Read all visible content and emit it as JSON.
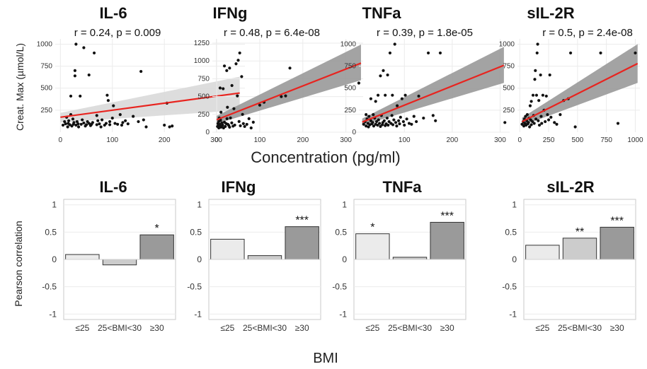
{
  "figure": {
    "top_x_label": "Concentration (pg/ml)",
    "top_y_label": "Creat. Max (µmol/L)",
    "bottom_x_label": "BMI",
    "bottom_y_label": "Pearson correlation"
  },
  "chart_data": [
    {
      "type": "scatter",
      "title": "IL-6",
      "stat": "r = 0.24, p = 0.009",
      "xlim": [
        -10,
        355
      ],
      "ylim": [
        0,
        1060
      ],
      "xticks": [
        0,
        100,
        200,
        300
      ],
      "yticks": [
        250,
        500,
        750,
        1000
      ],
      "fit": {
        "x": [
          0,
          345
        ],
        "y": [
          170,
          445
        ],
        "ci_low": [
          110,
          250
        ],
        "ci_high": [
          220,
          630
        ]
      },
      "fill": "#d9d9d9",
      "points": [
        [
          5,
          80
        ],
        [
          8,
          120
        ],
        [
          10,
          95
        ],
        [
          12,
          170
        ],
        [
          14,
          60
        ],
        [
          15,
          100
        ],
        [
          16,
          130
        ],
        [
          18,
          85
        ],
        [
          20,
          200
        ],
        [
          20,
          410
        ],
        [
          22,
          70
        ],
        [
          24,
          150
        ],
        [
          25,
          90
        ],
        [
          26,
          110
        ],
        [
          28,
          640
        ],
        [
          28,
          700
        ],
        [
          30,
          80
        ],
        [
          30,
          1000
        ],
        [
          32,
          120
        ],
        [
          34,
          95
        ],
        [
          35,
          60
        ],
        [
          38,
          410
        ],
        [
          40,
          90
        ],
        [
          42,
          140
        ],
        [
          45,
          105
        ],
        [
          45,
          960
        ],
        [
          48,
          70
        ],
        [
          50,
          85
        ],
        [
          52,
          120
        ],
        [
          55,
          100
        ],
        [
          55,
          650
        ],
        [
          58,
          75
        ],
        [
          60,
          90
        ],
        [
          62,
          110
        ],
        [
          65,
          900
        ],
        [
          70,
          190
        ],
        [
          70,
          85
        ],
        [
          72,
          130
        ],
        [
          75,
          95
        ],
        [
          78,
          60
        ],
        [
          80,
          140
        ],
        [
          85,
          80
        ],
        [
          88,
          100
        ],
        [
          90,
          420
        ],
        [
          92,
          360
        ],
        [
          95,
          120
        ],
        [
          95,
          85
        ],
        [
          100,
          160
        ],
        [
          102,
          300
        ],
        [
          105,
          100
        ],
        [
          110,
          90
        ],
        [
          115,
          200
        ],
        [
          118,
          80
        ],
        [
          120,
          110
        ],
        [
          125,
          130
        ],
        [
          130,
          95
        ],
        [
          140,
          180
        ],
        [
          150,
          120
        ],
        [
          155,
          690
        ],
        [
          160,
          140
        ],
        [
          165,
          60
        ],
        [
          200,
          80
        ],
        [
          205,
          330
        ],
        [
          210,
          60
        ],
        [
          215,
          70
        ],
        [
          320,
          700
        ],
        [
          330,
          530
        ],
        [
          345,
          900
        ]
      ]
    },
    {
      "type": "scatter",
      "title": "IFNg",
      "stat": "r = 0.48, p = 6.4e-08",
      "xlim": [
        -10,
        340
      ],
      "ylim": [
        0,
        1310
      ],
      "xticks": [
        0,
        100,
        200,
        300
      ],
      "yticks": [
        0,
        250,
        500,
        750,
        1000,
        1250
      ],
      "fit": {
        "x": [
          0,
          335
        ],
        "y": [
          175,
          970
        ],
        "ci_low": [
          120,
          730
        ],
        "ci_high": [
          230,
          1230
        ]
      },
      "fill": "#999999",
      "points": [
        [
          2,
          80
        ],
        [
          3,
          120
        ],
        [
          4,
          95
        ],
        [
          5,
          150
        ],
        [
          5,
          60
        ],
        [
          6,
          200
        ],
        [
          7,
          110
        ],
        [
          8,
          85
        ],
        [
          8,
          620
        ],
        [
          9,
          170
        ],
        [
          10,
          70
        ],
        [
          10,
          280
        ],
        [
          12,
          130
        ],
        [
          12,
          90
        ],
        [
          14,
          100
        ],
        [
          15,
          610
        ],
        [
          16,
          60
        ],
        [
          18,
          140
        ],
        [
          18,
          930
        ],
        [
          20,
          80
        ],
        [
          22,
          120
        ],
        [
          24,
          190
        ],
        [
          25,
          350
        ],
        [
          26,
          110
        ],
        [
          28,
          95
        ],
        [
          30,
          70
        ],
        [
          30,
          900
        ],
        [
          32,
          200
        ],
        [
          35,
          130
        ],
        [
          38,
          85
        ],
        [
          40,
          330
        ],
        [
          42,
          100
        ],
        [
          45,
          960
        ],
        [
          48,
          510
        ],
        [
          50,
          1010
        ],
        [
          52,
          150
        ],
        [
          55,
          90
        ],
        [
          58,
          780
        ],
        [
          60,
          250
        ],
        [
          62,
          120
        ],
        [
          65,
          80
        ],
        [
          70,
          110
        ],
        [
          75,
          190
        ],
        [
          80,
          60
        ],
        [
          85,
          140
        ],
        [
          100,
          380
        ],
        [
          110,
          420
        ],
        [
          150,
          500
        ],
        [
          160,
          510
        ],
        [
          170,
          900
        ],
        [
          330,
          690
        ]
      ]
    },
    {
      "type": "scatter",
      "title": "TNFa",
      "stat": "r = 0.39, p = 1.8e-05",
      "xlim": [
        5,
        320
      ],
      "ylim": [
        0,
        1060
      ],
      "xticks": [
        100,
        200,
        300
      ],
      "yticks": [
        0,
        250,
        500,
        750,
        1000
      ],
      "fit": {
        "x": [
          12,
          308
        ],
        "y": [
          115,
          760
        ],
        "ci_low": [
          80,
          560
        ],
        "ci_high": [
          155,
          970
        ]
      },
      "fill": "#999999",
      "points": [
        [
          15,
          90
        ],
        [
          18,
          120
        ],
        [
          20,
          70
        ],
        [
          20,
          200
        ],
        [
          22,
          150
        ],
        [
          24,
          100
        ],
        [
          25,
          60
        ],
        [
          26,
          180
        ],
        [
          28,
          85
        ],
        [
          30,
          130
        ],
        [
          30,
          380
        ],
        [
          32,
          95
        ],
        [
          34,
          110
        ],
        [
          35,
          200
        ],
        [
          36,
          70
        ],
        [
          38,
          160
        ],
        [
          40,
          90
        ],
        [
          40,
          350
        ],
        [
          42,
          120
        ],
        [
          44,
          80
        ],
        [
          45,
          420
        ],
        [
          46,
          140
        ],
        [
          48,
          100
        ],
        [
          50,
          65
        ],
        [
          50,
          640
        ],
        [
          52,
          190
        ],
        [
          54,
          85
        ],
        [
          55,
          110
        ],
        [
          56,
          700
        ],
        [
          58,
          130
        ],
        [
          60,
          75
        ],
        [
          60,
          420
        ],
        [
          62,
          95
        ],
        [
          64,
          160
        ],
        [
          65,
          650
        ],
        [
          66,
          80
        ],
        [
          68,
          120
        ],
        [
          70,
          900
        ],
        [
          72,
          100
        ],
        [
          74,
          190
        ],
        [
          75,
          420
        ],
        [
          76,
          85
        ],
        [
          78,
          140
        ],
        [
          80,
          1000
        ],
        [
          82,
          110
        ],
        [
          84,
          70
        ],
        [
          85,
          300
        ],
        [
          88,
          130
        ],
        [
          90,
          95
        ],
        [
          92,
          170
        ],
        [
          95,
          380
        ],
        [
          98,
          120
        ],
        [
          100,
          80
        ],
        [
          102,
          420
        ],
        [
          105,
          150
        ],
        [
          110,
          100
        ],
        [
          115,
          90
        ],
        [
          120,
          180
        ],
        [
          125,
          120
        ],
        [
          130,
          410
        ],
        [
          140,
          160
        ],
        [
          150,
          900
        ],
        [
          160,
          190
        ],
        [
          165,
          130
        ],
        [
          175,
          900
        ],
        [
          310,
          110
        ]
      ]
    },
    {
      "type": "scatter",
      "title": "sIL-2R",
      "stat": "r = 0.5, p = 2.4e-08",
      "xlim": [
        -20,
        1040
      ],
      "ylim": [
        0,
        1060
      ],
      "xticks": [
        0,
        250,
        500,
        750,
        1000
      ],
      "yticks": [
        250,
        500,
        750,
        1000
      ],
      "fit": {
        "x": [
          20,
          1020
        ],
        "y": [
          120,
          780
        ],
        "ci_low": [
          75,
          560
        ],
        "ci_high": [
          165,
          1000
        ]
      },
      "fill": "#999999",
      "points": [
        [
          20,
          90
        ],
        [
          30,
          120
        ],
        [
          35,
          70
        ],
        [
          40,
          150
        ],
        [
          45,
          100
        ],
        [
          50,
          180
        ],
        [
          55,
          80
        ],
        [
          60,
          130
        ],
        [
          65,
          200
        ],
        [
          70,
          95
        ],
        [
          75,
          110
        ],
        [
          80,
          160
        ],
        [
          85,
          60
        ],
        [
          90,
          300
        ],
        [
          95,
          140
        ],
        [
          100,
          85
        ],
        [
          100,
          350
        ],
        [
          110,
          120
        ],
        [
          115,
          420
        ],
        [
          120,
          190
        ],
        [
          125,
          100
        ],
        [
          130,
          600
        ],
        [
          135,
          700
        ],
        [
          140,
          150
        ],
        [
          145,
          420
        ],
        [
          150,
          900
        ],
        [
          155,
          1000
        ],
        [
          160,
          130
        ],
        [
          165,
          360
        ],
        [
          170,
          80
        ],
        [
          180,
          650
        ],
        [
          185,
          180
        ],
        [
          190,
          100
        ],
        [
          200,
          420
        ],
        [
          210,
          250
        ],
        [
          220,
          120
        ],
        [
          230,
          410
        ],
        [
          240,
          200
        ],
        [
          250,
          140
        ],
        [
          260,
          650
        ],
        [
          270,
          170
        ],
        [
          300,
          110
        ],
        [
          320,
          90
        ],
        [
          350,
          200
        ],
        [
          380,
          360
        ],
        [
          420,
          380
        ],
        [
          440,
          900
        ],
        [
          480,
          60
        ],
        [
          700,
          900
        ],
        [
          850,
          100
        ],
        [
          1000,
          900
        ]
      ]
    },
    {
      "type": "bar",
      "title": "IL-6",
      "ylabel": "Pearson correlation",
      "categories": [
        "≤25",
        "25<BMI<30",
        "≥30"
      ],
      "values": [
        0.09,
        -0.1,
        0.45
      ],
      "significance": [
        "",
        "",
        "*"
      ],
      "colors": [
        "#ebebeb",
        "#cccccc",
        "#9a9a9a"
      ],
      "ylim": [
        -1.1,
        1.1
      ],
      "yticks": [
        "1",
        "0.5",
        "0",
        "-0.5",
        "-1"
      ]
    },
    {
      "type": "bar",
      "title": "IFNg",
      "categories": [
        "≤25",
        "25<BMI<30",
        "≥30"
      ],
      "values": [
        0.37,
        0.07,
        0.6
      ],
      "significance": [
        "",
        "",
        "***"
      ],
      "colors": [
        "#ebebeb",
        "#cccccc",
        "#9a9a9a"
      ],
      "ylim": [
        -1.1,
        1.1
      ],
      "yticks": [
        "1",
        "0.5",
        "0",
        "-0.5",
        "-1"
      ]
    },
    {
      "type": "bar",
      "title": "TNFa",
      "categories": [
        "≤25",
        "25<BMI<30",
        "≥30"
      ],
      "values": [
        0.47,
        0.04,
        0.68
      ],
      "significance": [
        "*",
        "",
        "***"
      ],
      "colors": [
        "#ebebeb",
        "#cccccc",
        "#9a9a9a"
      ],
      "ylim": [
        -1.1,
        1.1
      ],
      "yticks": [
        "1",
        "0.5",
        "0",
        "-0.5",
        "-1"
      ]
    },
    {
      "type": "bar",
      "title": "sIL-2R",
      "categories": [
        "≤25",
        "25<BMI<30",
        "≥30"
      ],
      "values": [
        0.26,
        0.39,
        0.59
      ],
      "significance": [
        "",
        "**",
        "***"
      ],
      "colors": [
        "#ebebeb",
        "#cccccc",
        "#9a9a9a"
      ],
      "ylim": [
        -1.1,
        1.1
      ],
      "yticks": [
        "1",
        "0.5",
        "0",
        "-0.5",
        "-1"
      ]
    }
  ]
}
